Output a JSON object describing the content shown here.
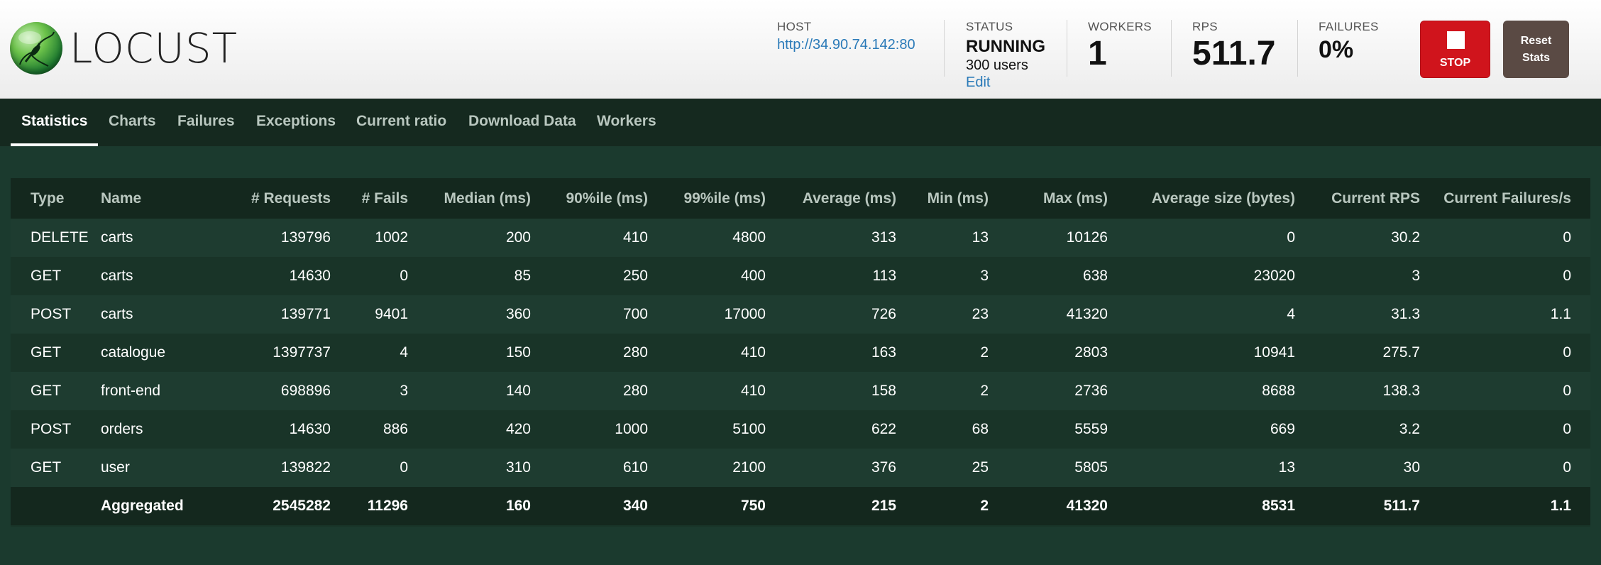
{
  "brand": {
    "name": "LOCUST",
    "icon": "locust-logo-icon"
  },
  "header": {
    "host": {
      "label": "HOST",
      "value": "http://34.90.74.142:80"
    },
    "status": {
      "label": "STATUS",
      "value": "RUNNING",
      "users": "300 users",
      "edit": "Edit"
    },
    "workers": {
      "label": "WORKERS",
      "value": "1"
    },
    "rps": {
      "label": "RPS",
      "value": "511.7"
    },
    "failures": {
      "label": "FAILURES",
      "value": "0%"
    },
    "stop_label": "STOP",
    "reset_label": "Reset Stats"
  },
  "tabs": [
    "Statistics",
    "Charts",
    "Failures",
    "Exceptions",
    "Current ratio",
    "Download Data",
    "Workers"
  ],
  "table": {
    "columns": [
      "Type",
      "Name",
      "# Requests",
      "# Fails",
      "Median (ms)",
      "90%ile (ms)",
      "99%ile (ms)",
      "Average (ms)",
      "Min (ms)",
      "Max (ms)",
      "Average size (bytes)",
      "Current RPS",
      "Current Failures/s"
    ],
    "rows": [
      [
        "DELETE",
        "carts",
        "139796",
        "1002",
        "200",
        "410",
        "4800",
        "313",
        "13",
        "10126",
        "0",
        "30.2",
        "0"
      ],
      [
        "GET",
        "carts",
        "14630",
        "0",
        "85",
        "250",
        "400",
        "113",
        "3",
        "638",
        "23020",
        "3",
        "0"
      ],
      [
        "POST",
        "carts",
        "139771",
        "9401",
        "360",
        "700",
        "17000",
        "726",
        "23",
        "41320",
        "4",
        "31.3",
        "1.1"
      ],
      [
        "GET",
        "catalogue",
        "1397737",
        "4",
        "150",
        "280",
        "410",
        "163",
        "2",
        "2803",
        "10941",
        "275.7",
        "0"
      ],
      [
        "GET",
        "front-end",
        "698896",
        "3",
        "140",
        "280",
        "410",
        "158",
        "2",
        "2736",
        "8688",
        "138.3",
        "0"
      ],
      [
        "POST",
        "orders",
        "14630",
        "886",
        "420",
        "1000",
        "5100",
        "622",
        "68",
        "5559",
        "669",
        "3.2",
        "0"
      ],
      [
        "GET",
        "user",
        "139822",
        "0",
        "310",
        "610",
        "2100",
        "376",
        "25",
        "5805",
        "13",
        "30",
        "0"
      ]
    ],
    "aggregate": [
      "",
      "Aggregated",
      "2545282",
      "11296",
      "160",
      "340",
      "750",
      "215",
      "2",
      "41320",
      "8531",
      "511.7",
      "1.1"
    ]
  },
  "colors": {
    "header_bg": "#f4f4f4",
    "page_bg": "#1b3a2e",
    "nav_bg": "#15291f",
    "stop": "#d0141c",
    "reset": "#5a4a44",
    "link": "#2a7ab8"
  }
}
